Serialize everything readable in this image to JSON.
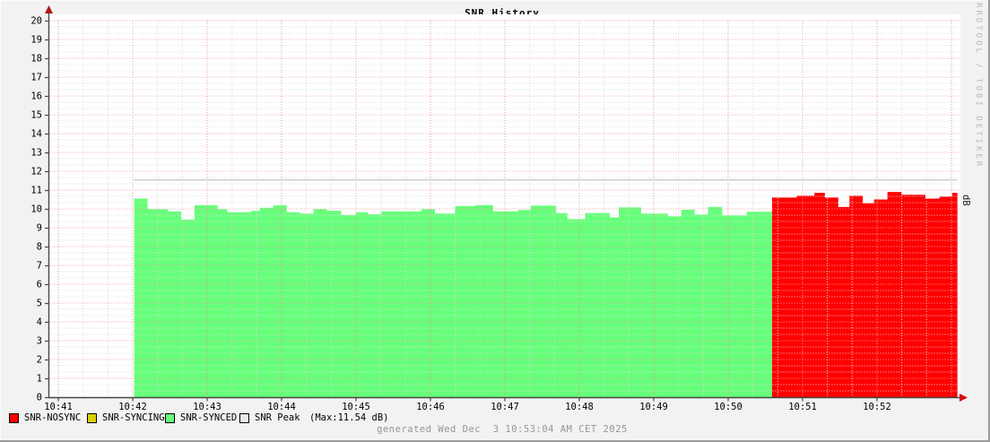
{
  "title": "SNR History",
  "branding": "RRDTOOL / TOBI OETIKER",
  "footer": "generated Wed Dec  3 10:53:04 AM CET 2025",
  "max_note": "(Max:11.54 dB)",
  "legend": [
    {
      "label": "SNR-NOSYNC",
      "color": "#ff0000"
    },
    {
      "label": "SNR-SYNCING",
      "color": "#ddd000"
    },
    {
      "label": "SNR-SYNCED",
      "color": "#66ff7a"
    },
    {
      "label": "SNR Peak",
      "color": "#eaeaea"
    }
  ],
  "chart_data": {
    "type": "area",
    "title": "SNR History",
    "right_axis_label": "dB",
    "ylim": [
      0,
      20
    ],
    "y_tick_step": 1,
    "x_tick_labels": [
      "10:41",
      "10:42",
      "10:43",
      "10:44",
      "10:45",
      "10:46",
      "10:47",
      "10:48",
      "10:49",
      "10:50",
      "10:51",
      "10:52"
    ],
    "x_axis_note": "minutes offset measured from 10:41, data ends ~10:53",
    "grid": {
      "major_color": "#f09b9b",
      "minor_color": "#dcdcdc",
      "major_y_every": 1,
      "minor_y_every": 0.3333,
      "major_x_every_min": 1,
      "minor_x_every_min": 0.3333
    },
    "axis_color": "#474747",
    "arrow_color": "#b01818",
    "peak_line": {
      "label": "SNR Peak",
      "max_value": 11.54,
      "value": 11.54,
      "start_min": 1.02,
      "end_min": 12.08,
      "color": "#c9c9c9"
    },
    "series": [
      {
        "name": "SNR-SYNCED",
        "color": "#66ff7a",
        "segments": [
          [
            1.02,
            1.2,
            10.55
          ],
          [
            1.2,
            1.47,
            9.98
          ],
          [
            1.47,
            1.65,
            9.87
          ],
          [
            1.65,
            1.83,
            9.43
          ],
          [
            1.83,
            2.14,
            10.19
          ],
          [
            2.14,
            2.27,
            9.98
          ],
          [
            2.27,
            2.59,
            9.82
          ],
          [
            2.59,
            2.71,
            9.9
          ],
          [
            2.71,
            2.89,
            10.06
          ],
          [
            2.89,
            3.07,
            10.19
          ],
          [
            3.07,
            3.25,
            9.82
          ],
          [
            3.25,
            3.43,
            9.75
          ],
          [
            3.43,
            3.61,
            9.98
          ],
          [
            3.61,
            3.8,
            9.9
          ],
          [
            3.8,
            4.0,
            9.67
          ],
          [
            4.0,
            4.16,
            9.82
          ],
          [
            4.16,
            4.34,
            9.72
          ],
          [
            4.34,
            4.88,
            9.87
          ],
          [
            4.88,
            5.06,
            9.98
          ],
          [
            5.06,
            5.33,
            9.75
          ],
          [
            5.33,
            5.6,
            10.14
          ],
          [
            5.6,
            5.84,
            10.2
          ],
          [
            5.84,
            6.18,
            9.87
          ],
          [
            6.18,
            6.35,
            9.94
          ],
          [
            6.35,
            6.69,
            10.17
          ],
          [
            6.69,
            6.84,
            9.78
          ],
          [
            6.84,
            7.08,
            9.46
          ],
          [
            7.08,
            7.41,
            9.78
          ],
          [
            7.41,
            7.53,
            9.55
          ],
          [
            7.53,
            7.83,
            10.08
          ],
          [
            7.83,
            8.19,
            9.75
          ],
          [
            8.19,
            8.37,
            9.6
          ],
          [
            8.37,
            8.55,
            9.95
          ],
          [
            8.55,
            8.73,
            9.7
          ],
          [
            8.73,
            8.92,
            10.1
          ],
          [
            8.92,
            9.25,
            9.65
          ],
          [
            9.25,
            9.59,
            9.85
          ]
        ]
      },
      {
        "name": "SNR-NOSYNC",
        "color": "#ff0000",
        "segments": [
          [
            9.59,
            9.92,
            10.6
          ],
          [
            9.92,
            10.16,
            10.7
          ],
          [
            10.16,
            10.3,
            10.85
          ],
          [
            10.3,
            10.48,
            10.6
          ],
          [
            10.48,
            10.63,
            10.1
          ],
          [
            10.63,
            10.81,
            10.7
          ],
          [
            10.81,
            10.96,
            10.3
          ],
          [
            10.96,
            11.14,
            10.5
          ],
          [
            11.14,
            11.33,
            10.9
          ],
          [
            11.33,
            11.65,
            10.75
          ],
          [
            11.65,
            11.84,
            10.55
          ],
          [
            11.84,
            12.01,
            10.65
          ],
          [
            12.01,
            12.08,
            10.85
          ]
        ]
      },
      {
        "name": "SNR-SYNCING",
        "color": "#ddd000",
        "segments": []
      }
    ],
    "legend_position": "bottom"
  }
}
